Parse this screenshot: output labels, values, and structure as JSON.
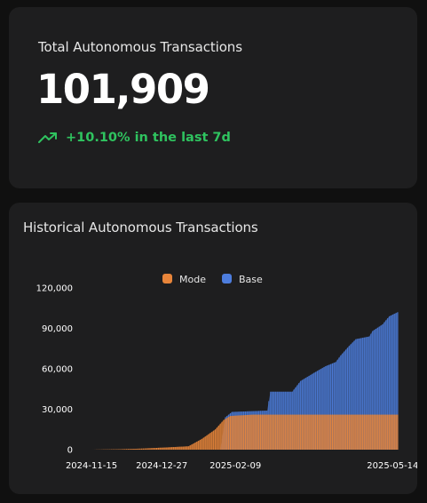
{
  "total": {
    "title": "Total Autonomous Transactions",
    "value": "101,909",
    "trend_icon": "trending-up-icon",
    "trend_text": "+10.10% in the last 7d",
    "trend_color": "#2fc35f"
  },
  "history": {
    "title": "Historical Autonomous Transactions"
  },
  "chart_data": {
    "type": "area",
    "stacked": false,
    "x_start": "2024-11-15",
    "x_end": "2025-05-17",
    "xticks": [
      "2024-11-15",
      "2024-12-27",
      "2025-02-09",
      "2025-05-14"
    ],
    "yticks": [
      "0",
      "30,000",
      "60,000",
      "90,000",
      "120,000"
    ],
    "ylim": [
      0,
      120000
    ],
    "legend_position": "top",
    "series": [
      {
        "name": "Mode",
        "color": "#e8853a",
        "points": [
          [
            "2024-11-15",
            0
          ],
          [
            "2024-12-01",
            300
          ],
          [
            "2024-12-15",
            800
          ],
          [
            "2024-12-27",
            1500
          ],
          [
            "2025-01-12",
            2500
          ],
          [
            "2025-01-20",
            8000
          ],
          [
            "2025-01-28",
            15000
          ],
          [
            "2025-02-02",
            22000
          ],
          [
            "2025-02-06",
            25000
          ],
          [
            "2025-02-20",
            26000
          ],
          [
            "2025-03-10",
            26000
          ],
          [
            "2025-05-17",
            26000
          ]
        ]
      },
      {
        "name": "Base",
        "color": "#4d7ddd",
        "points": [
          [
            "2024-11-15",
            0
          ],
          [
            "2025-01-31",
            0
          ],
          [
            "2025-02-03",
            24000
          ],
          [
            "2025-02-07",
            28000
          ],
          [
            "2025-02-28",
            29000
          ],
          [
            "2025-03-02",
            43000
          ],
          [
            "2025-03-15",
            43000
          ],
          [
            "2025-03-20",
            51000
          ],
          [
            "2025-03-28",
            57000
          ],
          [
            "2025-04-04",
            62000
          ],
          [
            "2025-04-10",
            65000
          ],
          [
            "2025-04-13",
            70000
          ],
          [
            "2025-04-18",
            77000
          ],
          [
            "2025-04-22",
            82000
          ],
          [
            "2025-04-30",
            84000
          ],
          [
            "2025-05-02",
            88000
          ],
          [
            "2025-05-08",
            93000
          ],
          [
            "2025-05-12",
            99000
          ],
          [
            "2025-05-17",
            102000
          ]
        ]
      }
    ]
  }
}
